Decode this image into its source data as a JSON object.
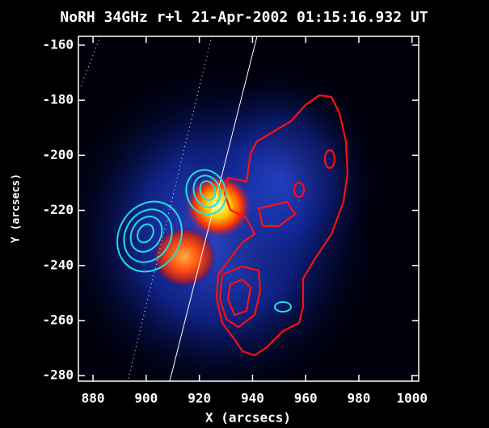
{
  "chart_data": {
    "type": "image",
    "title": "NoRH 34GHz r+l 21-Apr-2002 01:15:16.932 UT",
    "x_label": "X (arcsecs)",
    "y_label": "Y (arcsecs)",
    "xlim": [
      874.5,
      1002.5
    ],
    "ylim": [
      -282,
      -156.8
    ],
    "xticks": [
      880,
      900,
      920,
      940,
      960,
      980,
      1000
    ],
    "yticks": [
      -160,
      -180,
      -200,
      -220,
      -240,
      -260,
      -280
    ]
  }
}
